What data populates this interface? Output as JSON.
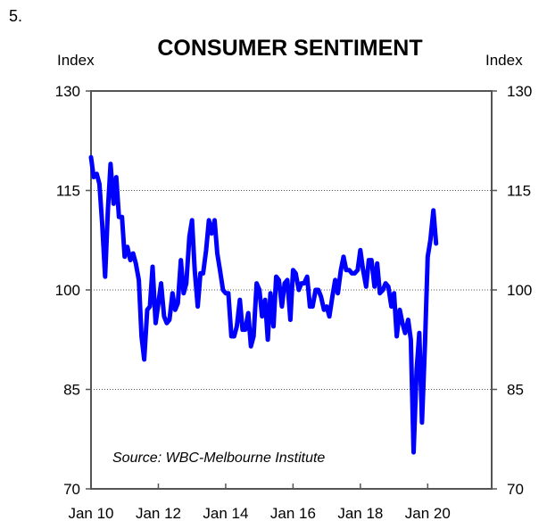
{
  "figure_number": "5.",
  "chart_data": {
    "type": "line",
    "title": "CONSUMER SENTIMENT",
    "ylabel_left": "Index",
    "ylabel_right": "Index",
    "ylim": [
      70,
      130
    ],
    "yticks": [
      70,
      85,
      100,
      115,
      130
    ],
    "xlim": [
      2010.0,
      2021.9
    ],
    "xticks": [
      {
        "label": "Jan 10",
        "value": 2010
      },
      {
        "label": "Jan 12",
        "value": 2012
      },
      {
        "label": "Jan 14",
        "value": 2014
      },
      {
        "label": "Jan 16",
        "value": 2016
      },
      {
        "label": "Jan 18",
        "value": 2018
      },
      {
        "label": "Jan 20",
        "value": 2020
      }
    ],
    "annotation": "Source: WBC-Melbourne Institute",
    "series": [
      {
        "name": "Consumer sentiment",
        "color": "#0000ff",
        "points": [
          [
            2010.0,
            120.0
          ],
          [
            2010.08,
            117.0
          ],
          [
            2010.17,
            117.5
          ],
          [
            2010.25,
            116.0
          ],
          [
            2010.33,
            110.0
          ],
          [
            2010.42,
            102.0
          ],
          [
            2010.5,
            112.0
          ],
          [
            2010.58,
            119.0
          ],
          [
            2010.67,
            113.0
          ],
          [
            2010.75,
            117.0
          ],
          [
            2010.83,
            111.0
          ],
          [
            2010.92,
            111.0
          ],
          [
            2011.0,
            105.0
          ],
          [
            2011.08,
            106.5
          ],
          [
            2011.17,
            104.5
          ],
          [
            2011.25,
            105.5
          ],
          [
            2011.33,
            104.0
          ],
          [
            2011.42,
            101.5
          ],
          [
            2011.5,
            93.0
          ],
          [
            2011.58,
            89.5
          ],
          [
            2011.67,
            97.0
          ],
          [
            2011.75,
            97.5
          ],
          [
            2011.83,
            103.5
          ],
          [
            2011.92,
            95.0
          ],
          [
            2012.0,
            98.0
          ],
          [
            2012.08,
            101.0
          ],
          [
            2012.17,
            96.0
          ],
          [
            2012.25,
            95.0
          ],
          [
            2012.33,
            95.5
          ],
          [
            2012.42,
            99.5
          ],
          [
            2012.5,
            97.0
          ],
          [
            2012.58,
            98.0
          ],
          [
            2012.67,
            104.5
          ],
          [
            2012.75,
            99.5
          ],
          [
            2012.83,
            101.0
          ],
          [
            2012.92,
            108.0
          ],
          [
            2013.0,
            110.5
          ],
          [
            2013.08,
            103.0
          ],
          [
            2013.17,
            97.5
          ],
          [
            2013.25,
            102.5
          ],
          [
            2013.33,
            102.5
          ],
          [
            2013.42,
            106.0
          ],
          [
            2013.5,
            110.5
          ],
          [
            2013.58,
            108.5
          ],
          [
            2013.67,
            110.5
          ],
          [
            2013.75,
            105.5
          ],
          [
            2013.83,
            103.0
          ],
          [
            2013.92,
            100.0
          ],
          [
            2014.0,
            99.5
          ],
          [
            2014.08,
            99.5
          ],
          [
            2014.17,
            93.0
          ],
          [
            2014.25,
            93.0
          ],
          [
            2014.33,
            94.5
          ],
          [
            2014.42,
            98.5
          ],
          [
            2014.5,
            94.0
          ],
          [
            2014.58,
            94.0
          ],
          [
            2014.67,
            96.5
          ],
          [
            2014.75,
            91.5
          ],
          [
            2014.83,
            93.0
          ],
          [
            2014.92,
            101.0
          ],
          [
            2015.0,
            100.0
          ],
          [
            2015.08,
            96.0
          ],
          [
            2015.17,
            98.5
          ],
          [
            2015.25,
            92.5
          ],
          [
            2015.33,
            99.5
          ],
          [
            2015.42,
            94.5
          ],
          [
            2015.5,
            102.0
          ],
          [
            2015.58,
            101.5
          ],
          [
            2015.67,
            97.5
          ],
          [
            2015.75,
            101.0
          ],
          [
            2015.83,
            101.5
          ],
          [
            2015.92,
            95.5
          ],
          [
            2016.0,
            103.0
          ],
          [
            2016.08,
            102.5
          ],
          [
            2016.17,
            100.0
          ],
          [
            2016.25,
            101.0
          ],
          [
            2016.33,
            101.0
          ],
          [
            2016.42,
            102.0
          ],
          [
            2016.5,
            97.5
          ],
          [
            2016.58,
            97.5
          ],
          [
            2016.67,
            100.0
          ],
          [
            2016.75,
            100.0
          ],
          [
            2016.83,
            99.0
          ],
          [
            2016.92,
            97.0
          ],
          [
            2017.0,
            97.5
          ],
          [
            2017.08,
            96.0
          ],
          [
            2017.17,
            99.0
          ],
          [
            2017.25,
            101.5
          ],
          [
            2017.33,
            99.5
          ],
          [
            2017.42,
            103.0
          ],
          [
            2017.5,
            105.0
          ],
          [
            2017.58,
            103.0
          ],
          [
            2017.67,
            103.0
          ],
          [
            2017.75,
            102.5
          ],
          [
            2017.83,
            102.5
          ],
          [
            2017.92,
            103.0
          ],
          [
            2018.0,
            106.0
          ],
          [
            2018.08,
            103.0
          ],
          [
            2018.17,
            100.5
          ],
          [
            2018.25,
            104.5
          ],
          [
            2018.33,
            104.5
          ],
          [
            2018.42,
            100.5
          ],
          [
            2018.5,
            104.0
          ],
          [
            2018.58,
            99.5
          ],
          [
            2018.67,
            100.0
          ],
          [
            2018.75,
            101.0
          ],
          [
            2018.83,
            100.5
          ],
          [
            2018.92,
            97.5
          ],
          [
            2019.0,
            99.5
          ],
          [
            2019.08,
            93.0
          ],
          [
            2019.17,
            97.0
          ],
          [
            2019.25,
            95.0
          ],
          [
            2019.33,
            93.5
          ],
          [
            2019.42,
            95.5
          ],
          [
            2019.5,
            92.5
          ],
          [
            2019.58,
            75.5
          ],
          [
            2019.67,
            88.0
          ],
          [
            2019.75,
            93.5
          ],
          [
            2019.83,
            80.0
          ],
          [
            2019.92,
            92.0
          ],
          [
            2020.0,
            105.0
          ],
          [
            2020.08,
            107.5
          ],
          [
            2020.17,
            112.0
          ],
          [
            2020.25,
            107.0
          ]
        ]
      }
    ]
  }
}
